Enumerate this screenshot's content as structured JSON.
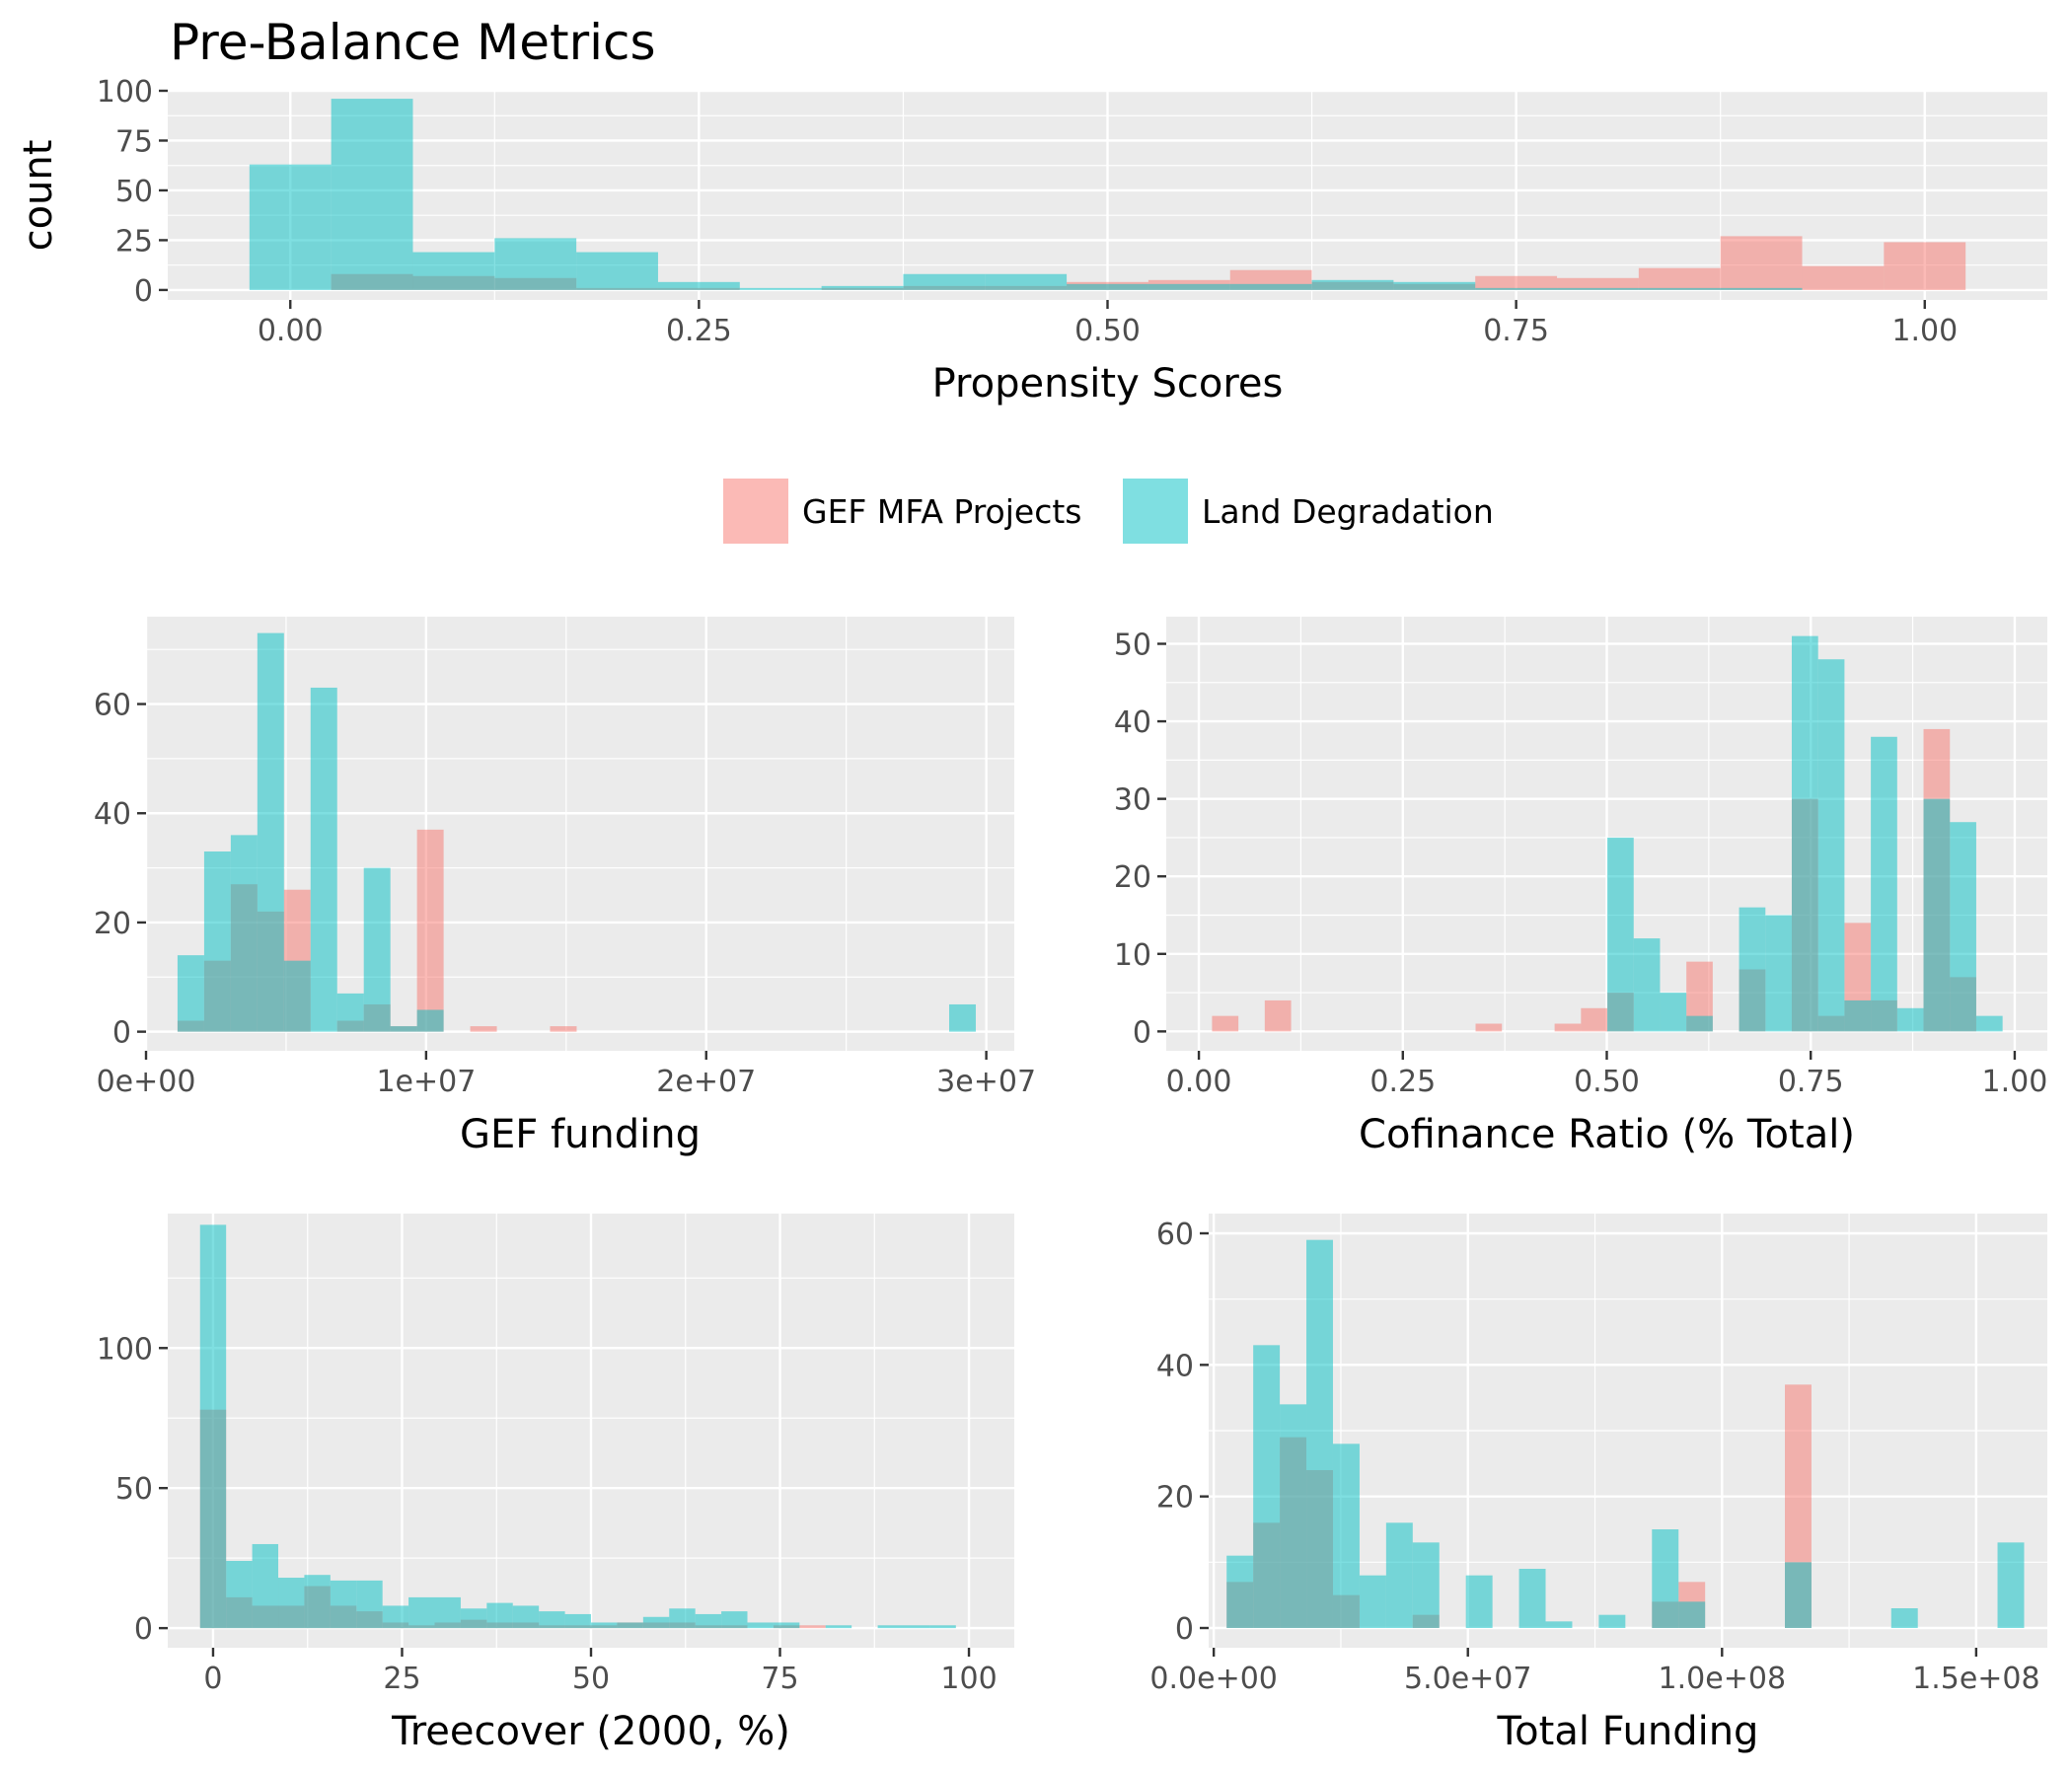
{
  "colors": {
    "group1": "#F8766D",
    "group2": "#00BFC4",
    "bar_alpha": 0.5,
    "panel_background": "#EBEBEB",
    "grid": "#FFFFFF"
  },
  "legend": {
    "placement": "center, between top chart and the grid of four charts",
    "entries": [
      {
        "label": "GEF MFA Projects",
        "color": "#F8766D"
      },
      {
        "label": "Land Degradation",
        "color": "#00BFC4"
      }
    ]
  },
  "chart_data": [
    {
      "id": "propensity",
      "type": "bar",
      "subtype": "overlapping histogram",
      "title": "Pre-Balance Metrics",
      "xlabel": "Propensity Scores",
      "ylabel": "count",
      "xlim": [
        -0.075,
        1.075
      ],
      "ylim": [
        -5,
        100
      ],
      "xticks": [
        0,
        0.25,
        0.5,
        0.75,
        1.0
      ],
      "xtick_labels": [
        "0.00",
        "0.25",
        "0.50",
        "0.75",
        "1.00"
      ],
      "yticks": [
        0,
        25,
        50,
        75,
        100
      ],
      "ytick_labels": [
        "0",
        "25",
        "50",
        "75",
        "100"
      ],
      "grid": true,
      "bin_width": 0.05,
      "x": [
        0.0,
        0.05,
        0.1,
        0.15,
        0.2,
        0.25,
        0.3,
        0.35,
        0.4,
        0.45,
        0.5,
        0.55,
        0.6,
        0.65,
        0.7,
        0.75,
        0.8,
        0.85,
        0.9,
        0.95,
        1.0
      ],
      "series": [
        {
          "name": "GEF MFA Projects",
          "values": [
            0,
            8,
            7,
            6,
            1,
            1,
            0,
            1,
            2,
            2,
            4,
            5,
            10,
            4,
            3,
            7,
            6,
            11,
            27,
            12,
            24
          ]
        },
        {
          "name": "Land Degradation",
          "values": [
            63,
            96,
            19,
            26,
            19,
            4,
            1,
            2,
            8,
            8,
            3,
            3,
            3,
            5,
            4,
            1,
            1,
            1,
            1,
            0,
            0
          ]
        }
      ]
    },
    {
      "id": "gef_funding",
      "type": "bar",
      "subtype": "overlapping histogram",
      "xlabel": "GEF funding",
      "ylabel": "",
      "xlim": [
        0,
        31000000
      ],
      "ylim": [
        -3.5,
        76
      ],
      "xticks": [
        0,
        10000000,
        20000000,
        30000000
      ],
      "xtick_labels": [
        "0e+00",
        "1e+07",
        "2e+07",
        "3e+07"
      ],
      "yticks": [
        0,
        20,
        40,
        60
      ],
      "ytick_labels": [
        "0",
        "20",
        "40",
        "60"
      ],
      "grid": true,
      "bin_width": 950000,
      "x": [
        1600000,
        2550000,
        3500000,
        4450000,
        5400000,
        6350000,
        7300000,
        8250000,
        9200000,
        10150000,
        11100000,
        12050000,
        13000000,
        13950000,
        14900000,
        15850000,
        16800000,
        17750000,
        18700000,
        19650000,
        20600000,
        21550000,
        22500000,
        23450000,
        24400000,
        25350000,
        26300000,
        27250000,
        28200000,
        29150000
      ],
      "series": [
        {
          "name": "GEF MFA Projects",
          "values": [
            2,
            13,
            27,
            22,
            26,
            0,
            2,
            5,
            1,
            37,
            0,
            1,
            0,
            0,
            1,
            0,
            0,
            0,
            0,
            0,
            0,
            0,
            0,
            0,
            0,
            0,
            0,
            0,
            0,
            0
          ]
        },
        {
          "name": "Land Degradation",
          "values": [
            14,
            33,
            36,
            73,
            13,
            63,
            7,
            30,
            1,
            4,
            0,
            0,
            0,
            0,
            0,
            0,
            0,
            0,
            0,
            0,
            0,
            0,
            0,
            0,
            0,
            0,
            0,
            0,
            0,
            5
          ]
        }
      ]
    },
    {
      "id": "cofinance",
      "type": "bar",
      "subtype": "overlapping histogram",
      "xlabel": "Cofinance Ratio (% Total)",
      "ylabel": "",
      "xlim": [
        -0.04,
        1.04
      ],
      "ylim": [
        -2.5,
        53.5
      ],
      "xticks": [
        0,
        0.25,
        0.5,
        0.75,
        1.0
      ],
      "xtick_labels": [
        "0.00",
        "0.25",
        "0.50",
        "0.75",
        "1.00"
      ],
      "yticks": [
        0,
        10,
        20,
        30,
        40,
        50
      ],
      "ytick_labels": [
        "0",
        "10",
        "20",
        "30",
        "40",
        "50"
      ],
      "grid": true,
      "bin_width": 0.0323,
      "x": [
        0.0323,
        0.0646,
        0.0969,
        0.1292,
        0.1615,
        0.1938,
        0.2261,
        0.2584,
        0.2907,
        0.323,
        0.3553,
        0.3876,
        0.4199,
        0.4522,
        0.4845,
        0.5168,
        0.5491,
        0.5814,
        0.6137,
        0.646,
        0.6783,
        0.7106,
        0.7429,
        0.7752,
        0.8075,
        0.8398,
        0.8721,
        0.9044,
        0.9367,
        0.969
      ],
      "series": [
        {
          "name": "GEF MFA Projects",
          "values": [
            2,
            0,
            4,
            0,
            0,
            0,
            0,
            0,
            0,
            0,
            1,
            0,
            0,
            1,
            3,
            5,
            0,
            0,
            9,
            0,
            8,
            0,
            30,
            2,
            14,
            4,
            0,
            39,
            7,
            0
          ]
        },
        {
          "name": "Land Degradation",
          "values": [
            0,
            0,
            0,
            0,
            0,
            0,
            0,
            0,
            0,
            0,
            0,
            0,
            0,
            0,
            0,
            25,
            12,
            5,
            2,
            0,
            16,
            15,
            51,
            48,
            4,
            38,
            3,
            30,
            27,
            2
          ]
        }
      ]
    },
    {
      "id": "treecover",
      "type": "bar",
      "subtype": "overlapping histogram",
      "xlabel": "Treecover (2000, %)",
      "ylabel": "",
      "xlim": [
        -6,
        106
      ],
      "ylim": [
        -7,
        148
      ],
      "xticks": [
        0,
        25,
        50,
        75,
        100
      ],
      "xtick_labels": [
        "0",
        "25",
        "50",
        "75",
        "100"
      ],
      "yticks": [
        0,
        50,
        100
      ],
      "ytick_labels": [
        "0",
        "50",
        "100"
      ],
      "grid": true,
      "bin_width": 3.448,
      "x": [
        0.0,
        3.448,
        6.897,
        10.345,
        13.793,
        17.241,
        20.69,
        24.138,
        27.586,
        31.034,
        34.483,
        37.931,
        41.379,
        44.828,
        48.276,
        51.724,
        55.172,
        58.621,
        62.069,
        65.517,
        68.966,
        72.414,
        75.862,
        79.31,
        82.759,
        86.207,
        89.655,
        93.103,
        96.552,
        100.0
      ],
      "series": [
        {
          "name": "GEF MFA Projects",
          "values": [
            78,
            11,
            8,
            8,
            15,
            8,
            6,
            2,
            1,
            2,
            3,
            2,
            2,
            1,
            1,
            1,
            2,
            2,
            2,
            1,
            1,
            0,
            1,
            1,
            0,
            0,
            0,
            0,
            0,
            0
          ]
        },
        {
          "name": "Land Degradation",
          "values": [
            144,
            24,
            30,
            18,
            19,
            17,
            17,
            8,
            11,
            11,
            7,
            9,
            8,
            6,
            5,
            2,
            2,
            4,
            7,
            5,
            6,
            2,
            2,
            0,
            1,
            0,
            1,
            1,
            1,
            0
          ]
        }
      ]
    },
    {
      "id": "total_funding",
      "type": "bar",
      "subtype": "overlapping histogram",
      "xlabel": "Total Funding",
      "ylabel": "",
      "xlim": [
        -1000000,
        164000000
      ],
      "ylim": [
        -3,
        63
      ],
      "xticks": [
        0,
        50000000,
        100000000,
        150000000
      ],
      "xtick_labels": [
        "0.0e+00",
        "5.0e+07",
        "1.0e+08",
        "1.5e+08"
      ],
      "yticks": [
        0,
        20,
        40,
        60
      ],
      "ytick_labels": [
        "0",
        "20",
        "40",
        "60"
      ],
      "grid": true,
      "bin_width": 5230000,
      "x": [
        5150000,
        10380000,
        15610000,
        20840000,
        26070000,
        31300000,
        36530000,
        41760000,
        46990000,
        52220000,
        57450000,
        62680000,
        67910000,
        73140000,
        78370000,
        83600000,
        88830000,
        94060000,
        99290000,
        104520000,
        109750000,
        114980000,
        120210000,
        125440000,
        130670000,
        135900000,
        141130000,
        146360000,
        151590000,
        156820000
      ],
      "series": [
        {
          "name": "GEF MFA Projects",
          "values": [
            7,
            16,
            29,
            24,
            5,
            0,
            0,
            2,
            0,
            0,
            0,
            0,
            0,
            0,
            0,
            0,
            4,
            7,
            0,
            0,
            0,
            37,
            0,
            0,
            0,
            0,
            0,
            0,
            0,
            0
          ]
        },
        {
          "name": "Land Degradation",
          "values": [
            11,
            43,
            34,
            59,
            28,
            8,
            16,
            13,
            0,
            8,
            0,
            9,
            1,
            0,
            2,
            0,
            15,
            4,
            0,
            0,
            0,
            10,
            0,
            0,
            0,
            3,
            0,
            0,
            0,
            13
          ]
        }
      ]
    }
  ]
}
